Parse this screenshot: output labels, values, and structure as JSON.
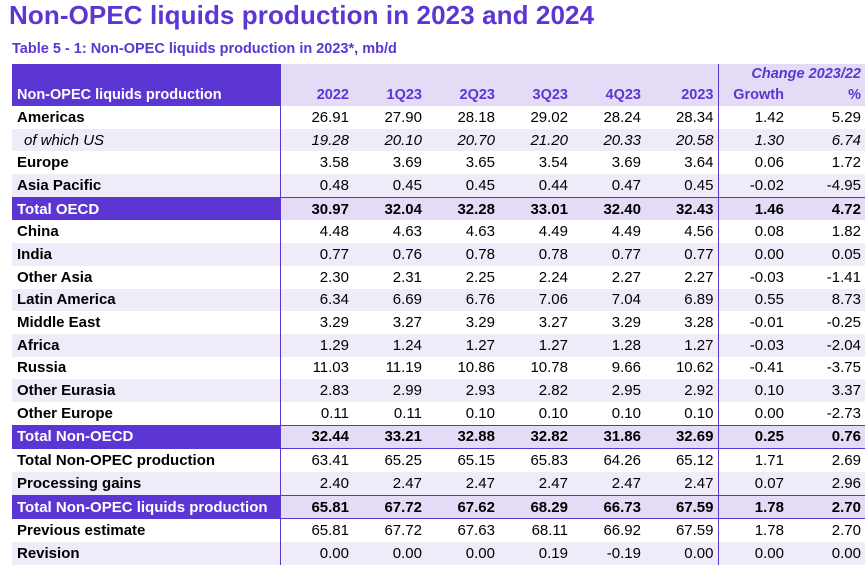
{
  "title": "Non-OPEC liquids production in 2023 and 2024",
  "subtitle": "Table 5 - 1: Non-OPEC liquids production in 2023*, mb/d",
  "header": {
    "change_label": "Change 2023/22",
    "row_label": "Non-OPEC liquids production",
    "columns": [
      "2022",
      "1Q23",
      "2Q23",
      "3Q23",
      "4Q23",
      "2023",
      "Growth",
      "%"
    ]
  },
  "rows": [
    {
      "label": "Americas",
      "values": [
        "26.91",
        "27.90",
        "28.18",
        "29.02",
        "28.24",
        "28.34",
        "1.42",
        "5.29"
      ]
    },
    {
      "label": "of which US",
      "values": [
        "19.28",
        "20.10",
        "20.70",
        "21.20",
        "20.33",
        "20.58",
        "1.30",
        "6.74"
      ]
    },
    {
      "label": "Europe",
      "values": [
        "3.58",
        "3.69",
        "3.65",
        "3.54",
        "3.69",
        "3.64",
        "0.06",
        "1.72"
      ]
    },
    {
      "label": "Asia Pacific",
      "values": [
        "0.48",
        "0.45",
        "0.45",
        "0.44",
        "0.47",
        "0.45",
        "-0.02",
        "-4.95"
      ]
    },
    {
      "label": "Total OECD",
      "values": [
        "30.97",
        "32.04",
        "32.28",
        "33.01",
        "32.40",
        "32.43",
        "1.46",
        "4.72"
      ]
    },
    {
      "label": "China",
      "values": [
        "4.48",
        "4.63",
        "4.63",
        "4.49",
        "4.49",
        "4.56",
        "0.08",
        "1.82"
      ]
    },
    {
      "label": "India",
      "values": [
        "0.77",
        "0.76",
        "0.78",
        "0.78",
        "0.77",
        "0.77",
        "0.00",
        "0.05"
      ]
    },
    {
      "label": "Other Asia",
      "values": [
        "2.30",
        "2.31",
        "2.25",
        "2.24",
        "2.27",
        "2.27",
        "-0.03",
        "-1.41"
      ]
    },
    {
      "label": "Latin America",
      "values": [
        "6.34",
        "6.69",
        "6.76",
        "7.06",
        "7.04",
        "6.89",
        "0.55",
        "8.73"
      ]
    },
    {
      "label": "Middle East",
      "values": [
        "3.29",
        "3.27",
        "3.29",
        "3.27",
        "3.29",
        "3.28",
        "-0.01",
        "-0.25"
      ]
    },
    {
      "label": "Africa",
      "values": [
        "1.29",
        "1.24",
        "1.27",
        "1.27",
        "1.28",
        "1.27",
        "-0.03",
        "-2.04"
      ]
    },
    {
      "label": "Russia",
      "values": [
        "11.03",
        "11.19",
        "10.86",
        "10.78",
        "9.66",
        "10.62",
        "-0.41",
        "-3.75"
      ]
    },
    {
      "label": "Other Eurasia",
      "values": [
        "2.83",
        "2.99",
        "2.93",
        "2.82",
        "2.95",
        "2.92",
        "0.10",
        "3.37"
      ]
    },
    {
      "label": "Other Europe",
      "values": [
        "0.11",
        "0.11",
        "0.10",
        "0.10",
        "0.10",
        "0.10",
        "0.00",
        "-2.73"
      ]
    },
    {
      "label": "Total Non-OECD",
      "values": [
        "32.44",
        "33.21",
        "32.88",
        "32.82",
        "31.86",
        "32.69",
        "0.25",
        "0.76"
      ]
    },
    {
      "label": "Total Non-OPEC production",
      "values": [
        "63.41",
        "65.25",
        "65.15",
        "65.83",
        "64.26",
        "65.12",
        "1.71",
        "2.69"
      ]
    },
    {
      "label": "Processing gains",
      "values": [
        "2.40",
        "2.47",
        "2.47",
        "2.47",
        "2.47",
        "2.47",
        "0.07",
        "2.96"
      ]
    },
    {
      "label": "Total Non-OPEC liquids production",
      "values": [
        "65.81",
        "67.72",
        "67.62",
        "68.29",
        "66.73",
        "67.59",
        "1.78",
        "2.70"
      ]
    },
    {
      "label": "Previous estimate",
      "values": [
        "65.81",
        "67.72",
        "67.63",
        "68.11",
        "66.92",
        "67.59",
        "1.78",
        "2.70"
      ]
    },
    {
      "label": "Revision",
      "values": [
        "0.00",
        "0.00",
        "0.00",
        "0.19",
        "-0.19",
        "0.00",
        "0.00",
        "0.00"
      ]
    }
  ],
  "colors": {
    "accent": "#5b36d2",
    "header_fill": "#e4dcf6",
    "shade_fill": "#efebf9"
  }
}
